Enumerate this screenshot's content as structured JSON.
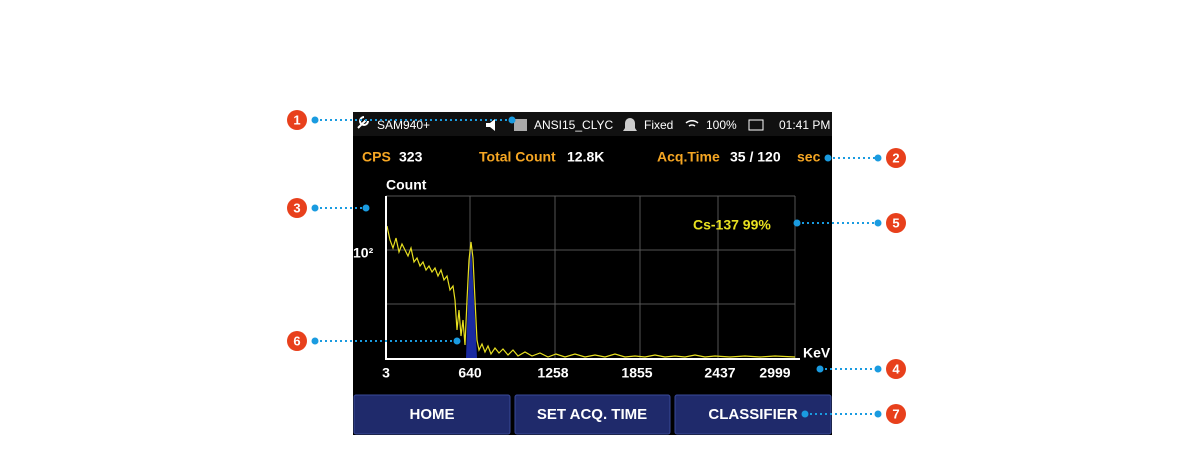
{
  "status_bar": {
    "device": "SAM940+",
    "library": "ANSI15_CLYC",
    "mode": "Fixed",
    "battery": "100%",
    "time": "01:41 PM"
  },
  "stats": {
    "cps_label": "CPS",
    "cps": "323",
    "total_label": "Total Count",
    "total": "12.8K",
    "acq_label": "Acq.Time",
    "acq": "35 / 120",
    "acq_unit": "sec"
  },
  "spectrum": {
    "y_label": "Count",
    "y_tick": "10²",
    "x_unit": "KeV",
    "x_ticks": [
      "3",
      "640",
      "1258",
      "1855",
      "2437",
      "2999"
    ],
    "identification": "Cs-137 99%"
  },
  "buttons": [
    "HOME",
    "SET ACQ. TIME",
    "CLASSIFIER"
  ],
  "callouts": [
    "1",
    "2",
    "3",
    "4",
    "5",
    "6",
    "7"
  ]
}
